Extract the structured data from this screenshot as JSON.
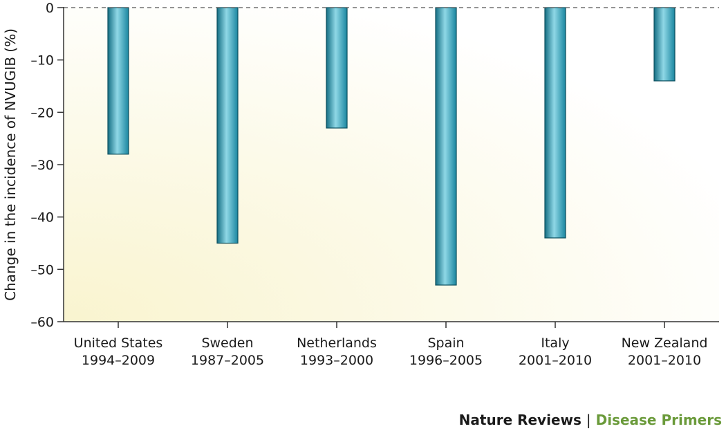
{
  "chart_data": {
    "type": "bar",
    "title": "",
    "xlabel": "",
    "ylabel": "Change in the incidence of NVUGIB (%)",
    "categories": [
      {
        "name": "United States",
        "period": "1994–2009"
      },
      {
        "name": "Sweden",
        "period": "1987–2005"
      },
      {
        "name": "Netherlands",
        "period": "1993–2000"
      },
      {
        "name": "Spain",
        "period": "1996–2005"
      },
      {
        "name": "Italy",
        "period": "2001–2010"
      },
      {
        "name": "New Zealand",
        "period": "2001–2010"
      }
    ],
    "values": [
      -28,
      -45,
      -23,
      -53,
      -44,
      -14
    ],
    "ylim": [
      -60,
      0
    ],
    "yticks": [
      0,
      -10,
      -20,
      -30,
      -40,
      -50,
      -60
    ],
    "ytick_labels": [
      "0",
      "–10",
      "–20",
      "–30",
      "–40",
      "–50",
      "–60"
    ],
    "zero_line": "dashed",
    "grid": false,
    "colors": {
      "bar": "#1e8fa8",
      "bar_highlight": "#8fd8e6",
      "bar_stroke": "#0d4f5e",
      "background_glow": "#fbf7d6"
    }
  },
  "credit": {
    "journal": "Nature Reviews",
    "separator": "|",
    "series": "Disease Primers"
  }
}
